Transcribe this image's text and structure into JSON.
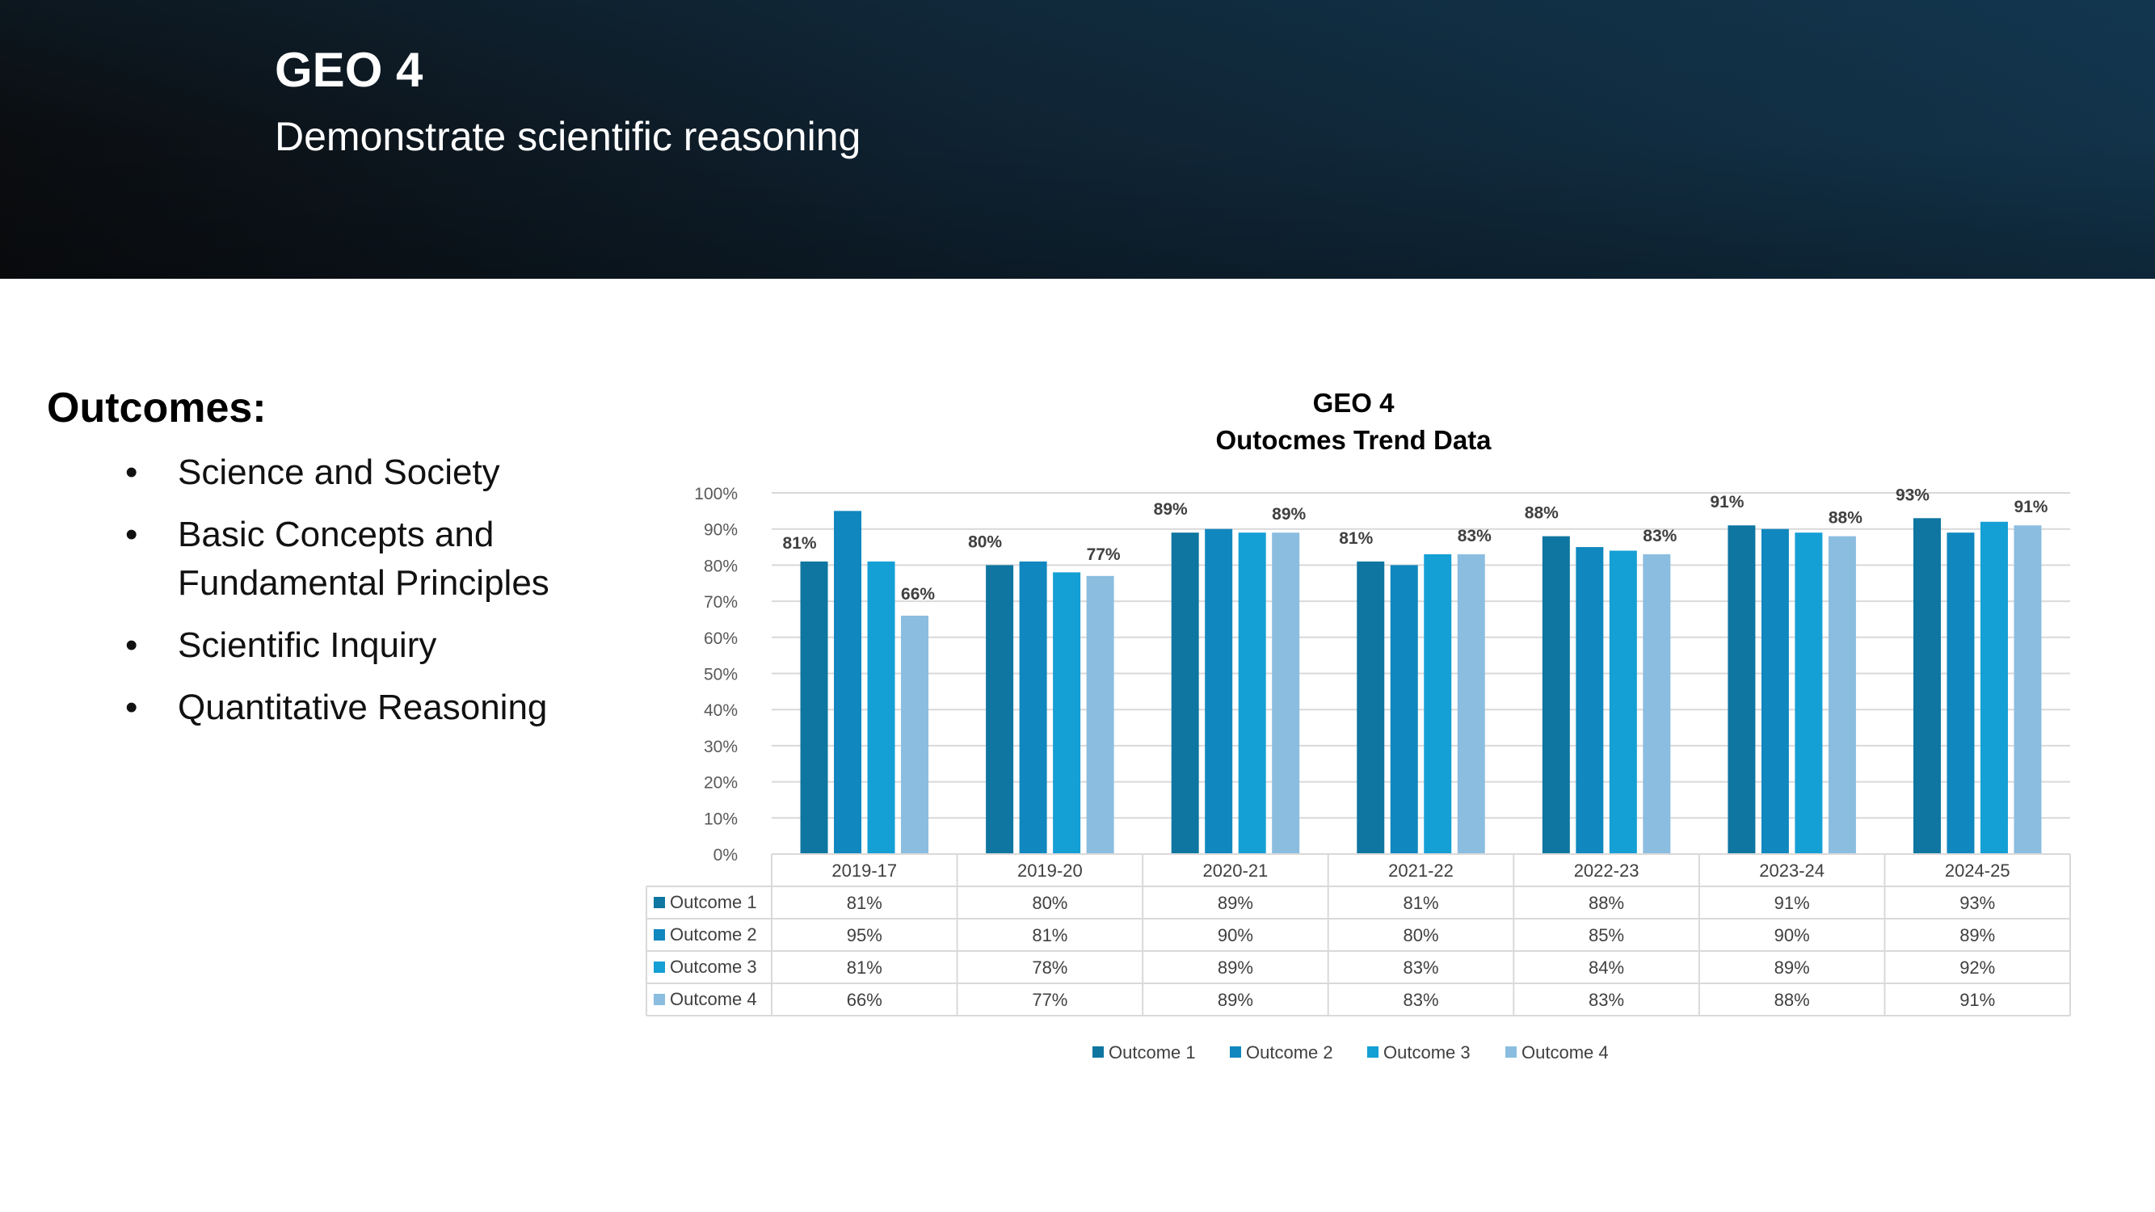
{
  "header": {
    "title": "GEO 4",
    "subtitle": "Demonstrate scientific reasoning",
    "gradient_colors": [
      "#0b0d10",
      "#0f2231",
      "#12334a"
    ]
  },
  "outcomes": {
    "heading": "Outcomes:",
    "bullet": "•",
    "items": [
      {
        "label": "Science and Society"
      },
      {
        "label": "Basic Concepts and Fundamental Principles"
      },
      {
        "label": "Scientific Inquiry"
      },
      {
        "label": "Quantitative Reasoning"
      }
    ]
  },
  "chart_data": {
    "type": "bar",
    "title": "GEO 4",
    "subtitle": "Outocmes Trend Data",
    "categories": [
      "2019-17",
      "2019-20",
      "2020-21",
      "2021-22",
      "2022-23",
      "2023-24",
      "2024-25"
    ],
    "series": [
      {
        "name": "Outcome 1",
        "color": "#0e76a0",
        "values": [
          81,
          80,
          89,
          81,
          88,
          91,
          93
        ]
      },
      {
        "name": "Outcome 2",
        "color": "#1087bf",
        "values": [
          95,
          81,
          90,
          80,
          85,
          90,
          89
        ]
      },
      {
        "name": "Outcome 3",
        "color": "#149fd5",
        "values": [
          81,
          78,
          89,
          83,
          84,
          89,
          92
        ]
      },
      {
        "name": "Outcome 4",
        "color": "#8bbde0",
        "values": [
          66,
          77,
          89,
          83,
          83,
          88,
          91
        ]
      }
    ],
    "data_labels": {
      "Outcome 1": [
        "81%",
        "80%",
        "89%",
        "81%",
        "88%",
        "91%",
        "93%"
      ],
      "Outcome 4": [
        "66%",
        "77%",
        "89%",
        "83%",
        "83%",
        "88%",
        "91%"
      ]
    },
    "y_ticks": [
      "0%",
      "10%",
      "20%",
      "30%",
      "40%",
      "50%",
      "60%",
      "70%",
      "80%",
      "90%",
      "100%"
    ],
    "ylim": [
      0,
      100
    ],
    "grid": true,
    "legend": "bottom",
    "data_table": {
      "rows": [
        {
          "label": "Outcome 1",
          "cells": [
            "81%",
            "80%",
            "89%",
            "81%",
            "88%",
            "91%",
            "93%"
          ]
        },
        {
          "label": "Outcome 2",
          "cells": [
            "95%",
            "81%",
            "90%",
            "80%",
            "85%",
            "90%",
            "89%"
          ]
        },
        {
          "label": "Outcome 3",
          "cells": [
            "81%",
            "78%",
            "89%",
            "83%",
            "84%",
            "89%",
            "92%"
          ]
        },
        {
          "label": "Outcome 4",
          "cells": [
            "66%",
            "77%",
            "89%",
            "83%",
            "83%",
            "88%",
            "91%"
          ]
        }
      ]
    }
  }
}
